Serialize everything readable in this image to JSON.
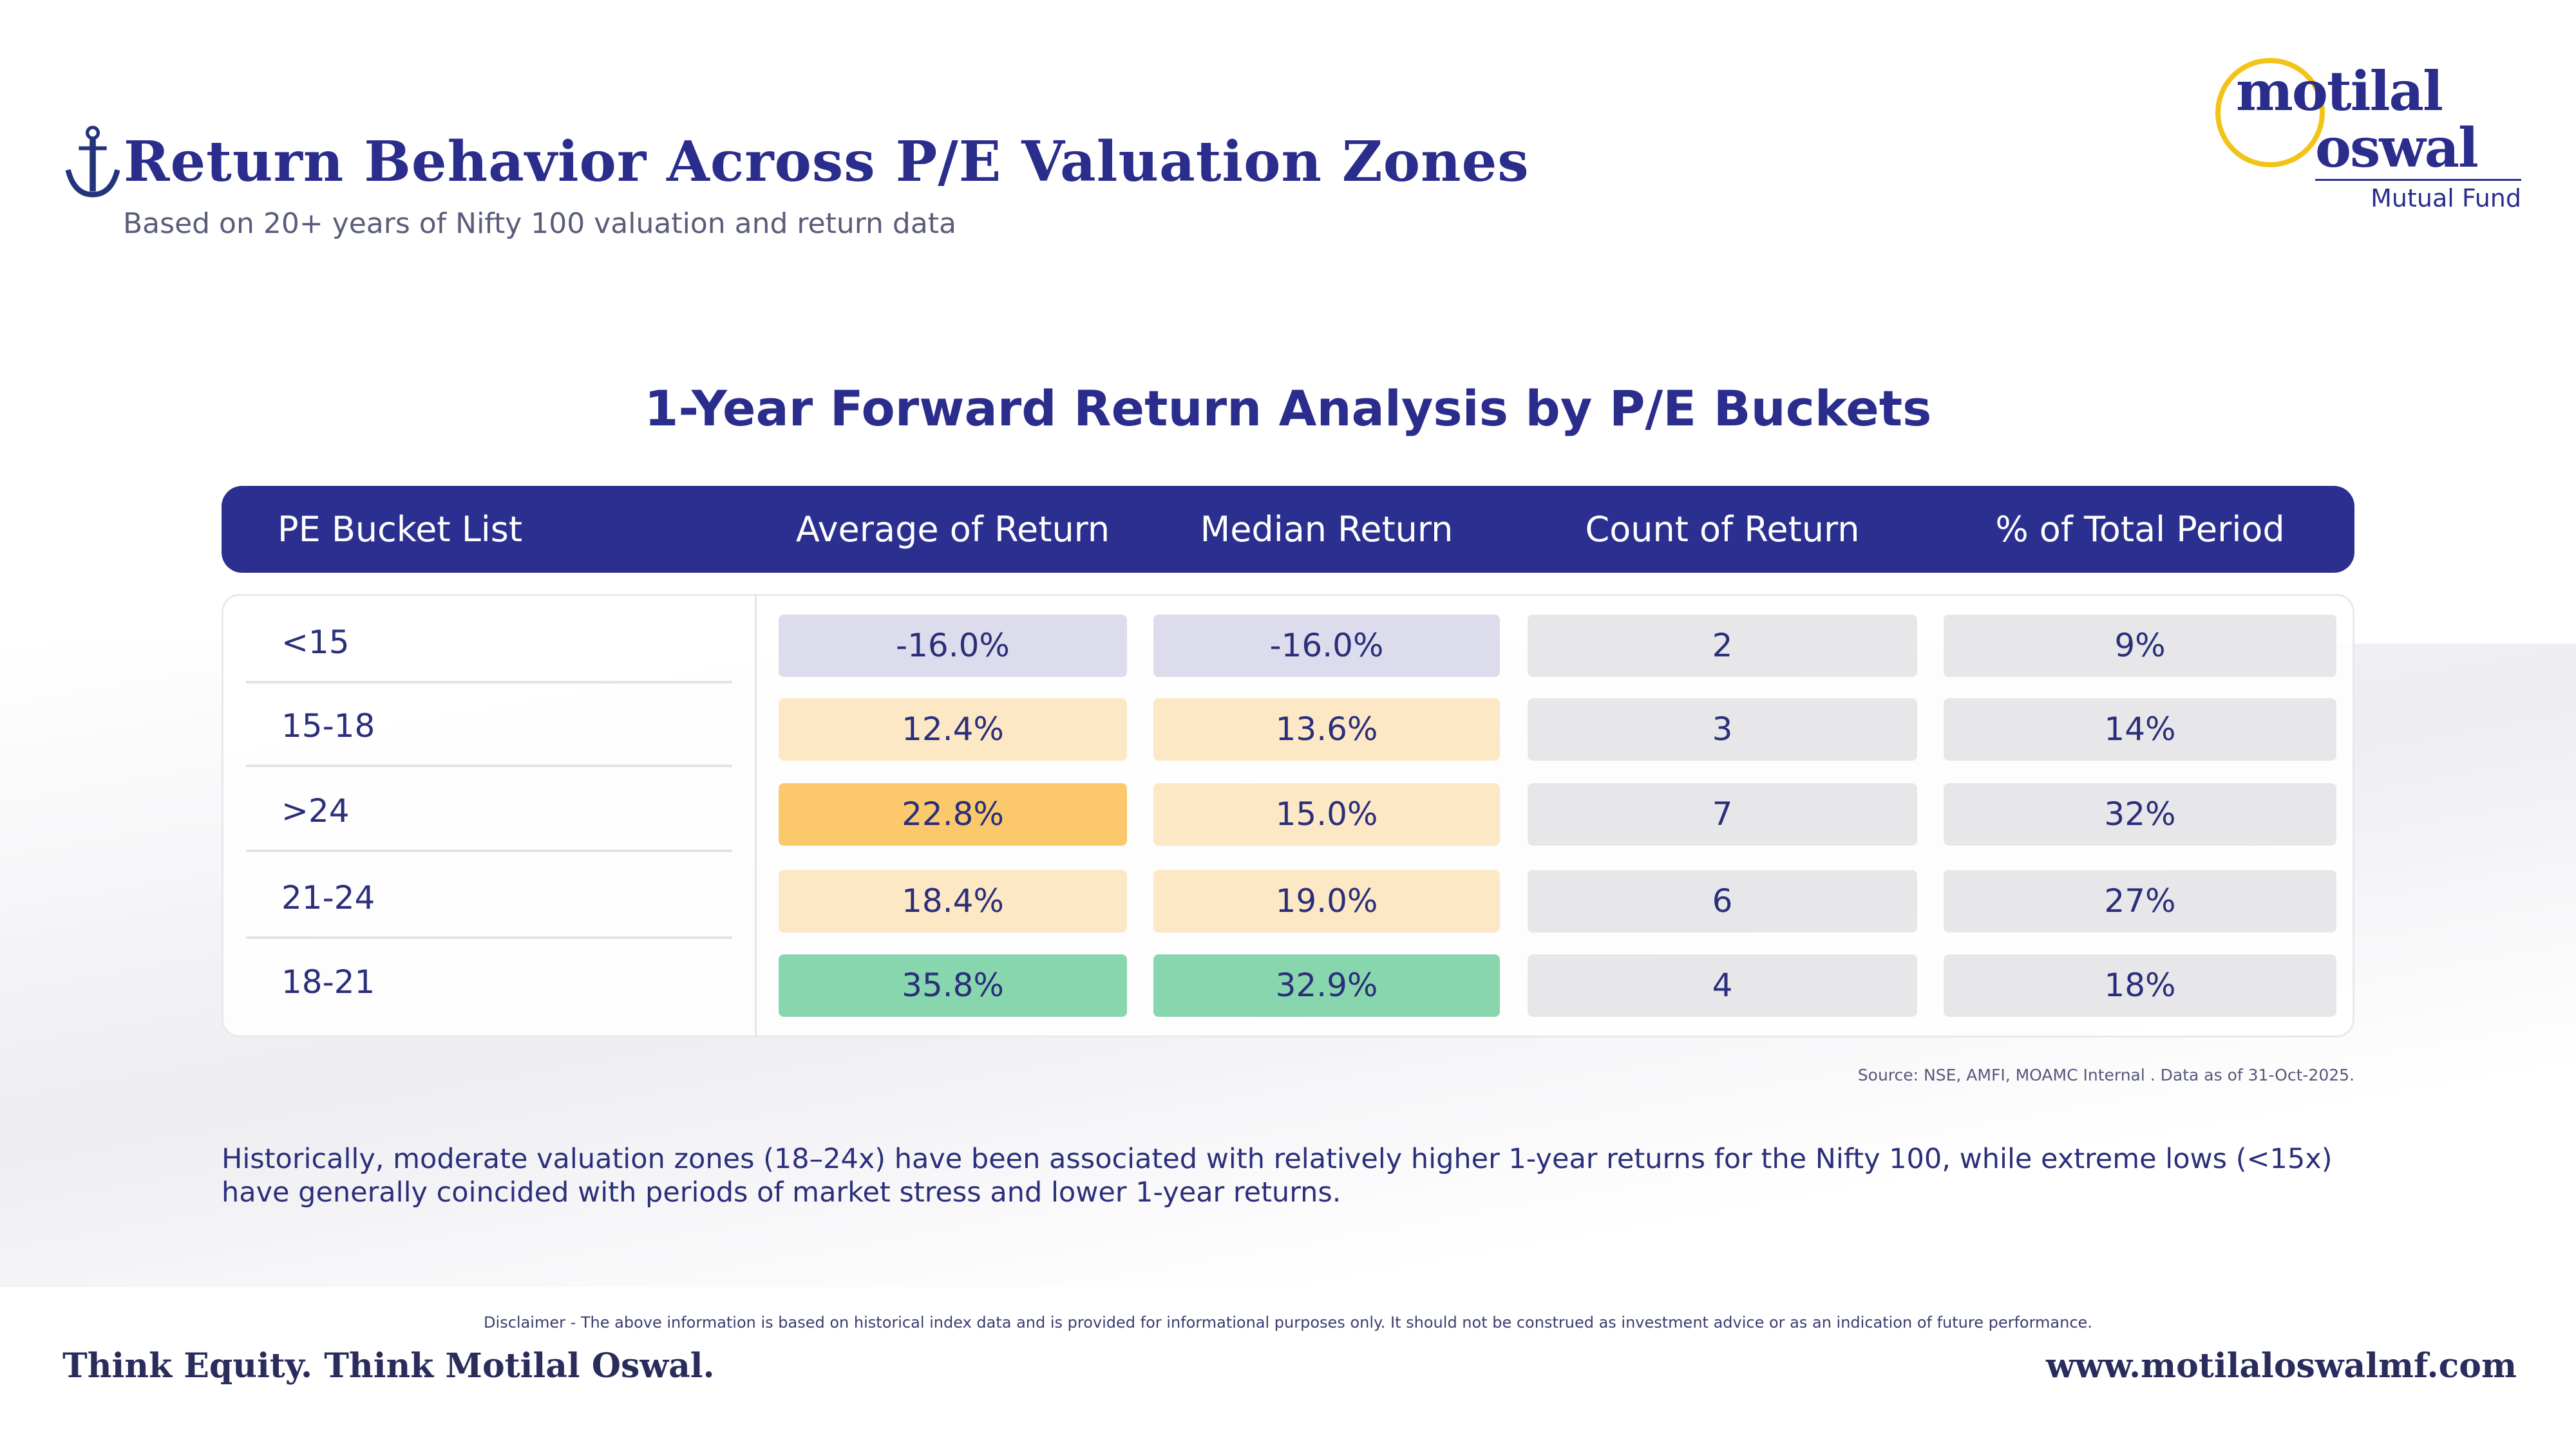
{
  "header": {
    "title": "Return Behavior Across P/E Valuation Zones",
    "subtitle": "Based on 20+ years of Nifty 100 valuation and return data",
    "icon": "anchor-icon"
  },
  "logo": {
    "line1": "motilal",
    "line2": "oswal",
    "sub": "Mutual Fund"
  },
  "section_title": "1-Year Forward Return Analysis by P/E Buckets",
  "table": {
    "columns": [
      "PE Bucket List",
      "Average of Return",
      "Median Return",
      "Count of Return",
      "% of Total Period"
    ],
    "rows": [
      {
        "bucket": "<15",
        "average": "-16.0%",
        "median": "-16.0%",
        "count": "2",
        "pct": "9%"
      },
      {
        "bucket": "15-18",
        "average": "12.4%",
        "median": "13.6%",
        "count": "3",
        "pct": "14%"
      },
      {
        "bucket": ">24",
        "average": "22.8%",
        "median": "15.0%",
        "count": "7",
        "pct": "32%"
      },
      {
        "bucket": "21-24",
        "average": "18.4%",
        "median": "19.0%",
        "count": "6",
        "pct": "27%"
      },
      {
        "bucket": "18-21",
        "average": "35.8%",
        "median": "32.9%",
        "count": "4",
        "pct": "18%"
      }
    ],
    "cell_colors": {
      "average": [
        "#dcdcec",
        "#fde8c6",
        "#fbc86c",
        "#fde8c6",
        "#88d6ad"
      ],
      "median": [
        "#dcdcec",
        "#fde8c6",
        "#fde8c6",
        "#fde8c6",
        "#88d6ad"
      ],
      "neutral": "#e7e7ea"
    }
  },
  "source": "Source: NSE, AMFI, MOAMC Internal . Data as of 31-Oct-2025.",
  "commentary": "Historically, moderate valuation zones (18–24x) have been associated with relatively higher 1-year returns for the Nifty 100, while extreme lows (<15x) have generally coincided with periods of market stress and lower 1-year returns.",
  "disclaimer": "Disclaimer -  The above information is based on historical index data and is provided for informational purposes only. It should not be construed as investment advice or as an indication of future performance.",
  "footer": {
    "tagline": "Think Equity. Think Motilal Oswal.",
    "url": "www.motilaloswalmf.com"
  },
  "colors": {
    "brand": "#2b2f8f",
    "accent": "#f2c417"
  }
}
